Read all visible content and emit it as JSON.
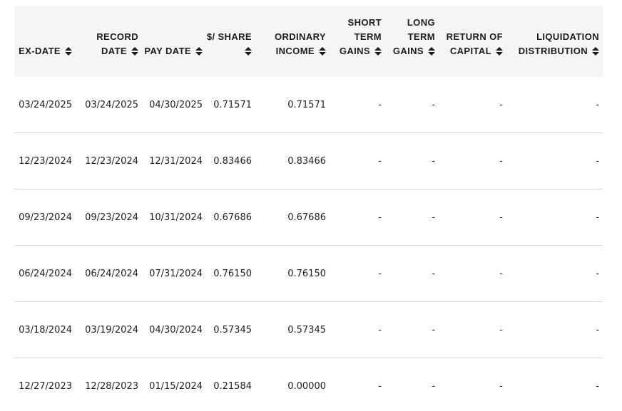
{
  "table": {
    "columns": [
      {
        "key": "ex-date",
        "label": "EX-DATE",
        "sort_icon": "sort-arrows-icon"
      },
      {
        "key": "record-date",
        "label": "RECORD DATE",
        "sort_icon": "sort-arrows-icon"
      },
      {
        "key": "pay-date",
        "label": "PAY DATE",
        "sort_icon": "sort-arrows-icon"
      },
      {
        "key": "per-share",
        "label": "$/ SHARE",
        "sort_icon": "sort-arrows-icon"
      },
      {
        "key": "ordinary-income",
        "label": "ORDINARY INCOME",
        "sort_icon": "sort-arrows-icon"
      },
      {
        "key": "short-term-gains",
        "label": "SHORT TERM GAINS",
        "sort_icon": "sort-arrows-icon"
      },
      {
        "key": "long-term-gains",
        "label": "LONG TERM GAINS",
        "sort_icon": "sort-arrows-icon"
      },
      {
        "key": "return-of-capital",
        "label": "RETURN OF CAPITAL",
        "sort_icon": "sort-arrows-icon"
      },
      {
        "key": "liquidation-distribution",
        "label": "LIQUIDATION DISTRIBUTION",
        "sort_icon": "sort-arrows-icon"
      }
    ],
    "rows": [
      {
        "cells": [
          "03/24/2025",
          "03/24/2025",
          "04/30/2025",
          "0.71571",
          "0.71571",
          "-",
          "-",
          "-",
          "-"
        ]
      },
      {
        "cells": [
          "12/23/2024",
          "12/23/2024",
          "12/31/2024",
          "0.83466",
          "0.83466",
          "-",
          "-",
          "-",
          "-"
        ]
      },
      {
        "cells": [
          "09/23/2024",
          "09/23/2024",
          "10/31/2024",
          "0.67686",
          "0.67686",
          "-",
          "-",
          "-",
          "-"
        ]
      },
      {
        "cells": [
          "06/24/2024",
          "06/24/2024",
          "07/31/2024",
          "0.76150",
          "0.76150",
          "-",
          "-",
          "-",
          "-"
        ]
      },
      {
        "cells": [
          "03/18/2024",
          "03/19/2024",
          "04/30/2024",
          "0.57345",
          "0.57345",
          "-",
          "-",
          "-",
          "-"
        ]
      },
      {
        "cells": [
          "12/27/2023",
          "12/28/2023",
          "01/15/2024",
          "0.21584",
          "0.00000",
          "-",
          "-",
          "-",
          "-"
        ]
      }
    ]
  },
  "colors": {
    "header_bg": "#f5f5f5",
    "header_text": "#1c1c1c",
    "body_text": "#222222",
    "divider": "#d8d8d8"
  }
}
